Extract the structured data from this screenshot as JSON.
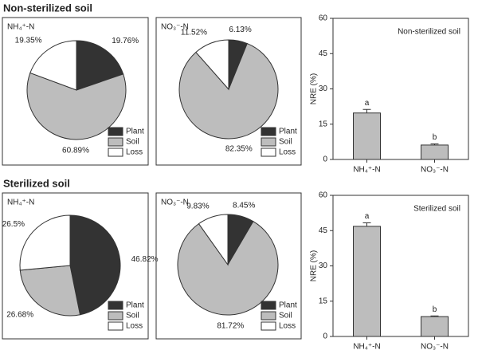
{
  "headings": [
    "Non-sterilized soil",
    "Sterilized soil"
  ],
  "chart_data": [
    {
      "type": "pie",
      "title": "NH₄⁺-N",
      "categories": [
        "Plant",
        "Soil",
        "Loss"
      ],
      "values": [
        19.76,
        60.89,
        19.35
      ],
      "value_labels": [
        "19.76%",
        "60.89%",
        "19.35%"
      ],
      "colors": [
        "#333333",
        "#bdbdbd",
        "#ffffff"
      ]
    },
    {
      "type": "pie",
      "title": "NO₃⁻-N",
      "categories": [
        "Plant",
        "Soil",
        "Loss"
      ],
      "values": [
        6.13,
        82.35,
        11.52
      ],
      "value_labels": [
        "6.13%",
        "82.35%",
        "11.52%"
      ],
      "colors": [
        "#333333",
        "#bdbdbd",
        "#ffffff"
      ]
    },
    {
      "type": "bar",
      "title": "Non-sterilized soil",
      "ylabel": "NRE (%)",
      "categories": [
        "NH₄⁺-N",
        "NO₃⁻-N"
      ],
      "values": [
        19.76,
        6.13
      ],
      "errors": [
        1.5,
        0.5
      ],
      "annotations": [
        "a",
        "b"
      ],
      "color": "#bdbdbd",
      "ylim": [
        0,
        60
      ],
      "yticks": [
        0,
        15,
        30,
        45,
        60
      ]
    },
    {
      "type": "pie",
      "title": "NH₄⁺-N",
      "categories": [
        "Plant",
        "Soil",
        "Loss"
      ],
      "values": [
        46.82,
        26.68,
        26.5
      ],
      "value_labels": [
        "46.82%",
        "26.68%",
        "26.5%"
      ],
      "colors": [
        "#333333",
        "#bdbdbd",
        "#ffffff"
      ]
    },
    {
      "type": "pie",
      "title": "NO₃⁻-N",
      "categories": [
        "Plant",
        "Soil",
        "Loss"
      ],
      "values": [
        8.45,
        81.72,
        9.83
      ],
      "value_labels": [
        "8.45%",
        "81.72%",
        "9.83%"
      ],
      "colors": [
        "#333333",
        "#bdbdbd",
        "#ffffff"
      ]
    },
    {
      "type": "bar",
      "title": "Sterilized soil",
      "ylabel": "NRE (%)",
      "categories": [
        "NH₄⁺-N",
        "NO₃⁻-N"
      ],
      "values": [
        46.82,
        8.45
      ],
      "errors": [
        1.5,
        0.3
      ],
      "annotations": [
        "a",
        "b"
      ],
      "color": "#bdbdbd",
      "ylim": [
        0,
        60
      ],
      "yticks": [
        0,
        15,
        30,
        45,
        60
      ]
    }
  ]
}
